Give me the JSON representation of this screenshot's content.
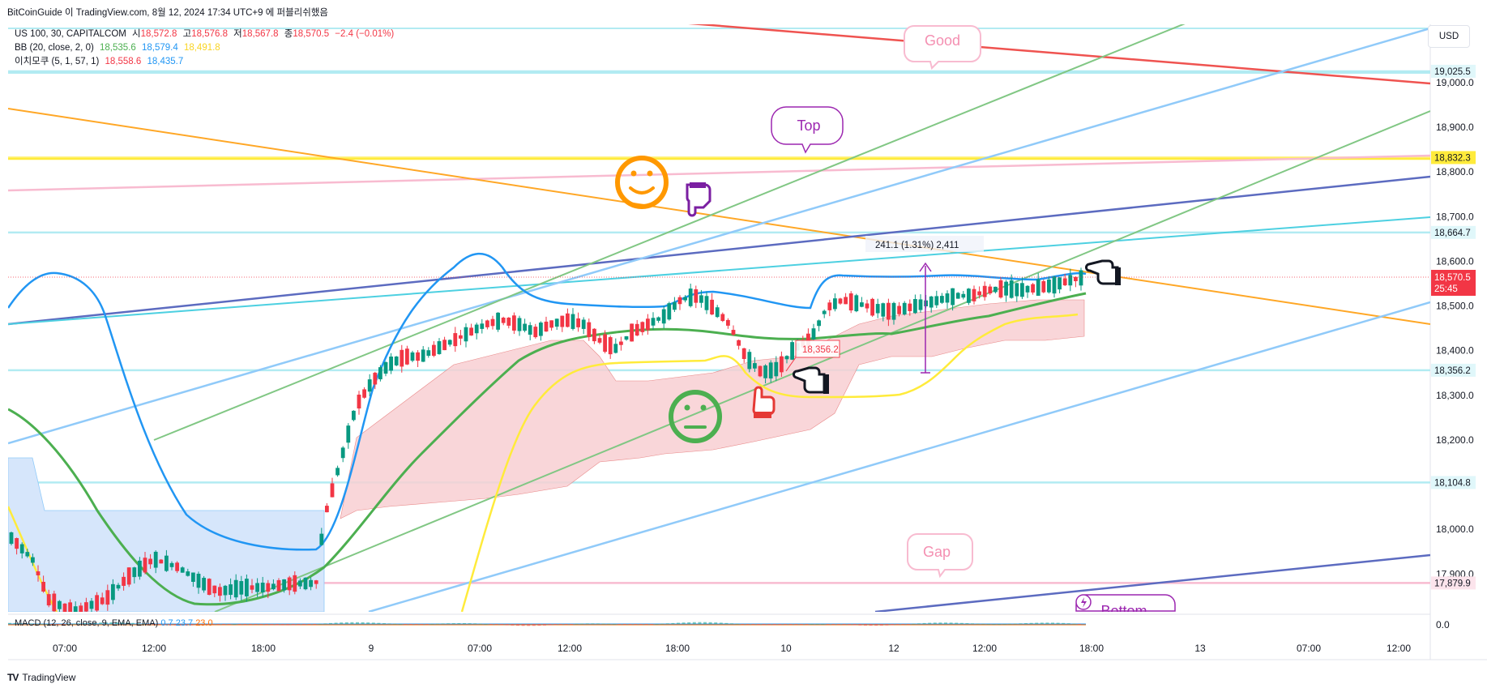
{
  "header": {
    "title": "BitCoinGuide 이 TradingView.com, 8월 12, 2024 17:34 UTC+9 에 퍼블리쉬했음"
  },
  "legend": {
    "symbol": "US 100, 30, CAPITALCOM",
    "o_label": "시",
    "o_value": "18,572.8",
    "h_label": "고",
    "h_value": "18,576.8",
    "l_label": "저",
    "l_value": "18,567.8",
    "c_label": "종",
    "c_value": "18,570.5",
    "change": "−2.4 (−0.01%)",
    "bb_label": "BB (20, close, 2, 0)",
    "bb_basis": "18,535.6",
    "bb_upper": "18,579.4",
    "bb_lower": "18,491.8",
    "ichimoku_label": "이치모쿠 (5, 1, 57, 1)",
    "ichi_v1": "18,558.6",
    "ichi_v2": "18,435.7"
  },
  "currency_button": "USD",
  "macd_label": "MACD (12, 26, close, 9, EMA, EMA)",
  "macd_values": [
    "0.7",
    "23.7",
    "23.0"
  ],
  "macd_axis": "0.0",
  "annotations": {
    "measure": "241.1 (1.31%) 2,411",
    "price_callout": "18,356.2",
    "bubble_good": "Good",
    "bubble_top": "Top",
    "bubble_gap": "Gap",
    "bubble_bottom": "Bottom"
  },
  "price_tags": {
    "current_price": "18,570.5",
    "countdown": "25:45",
    "levels": [
      "19,025.5",
      "18,832.3",
      "18,664.7",
      "18,356.2",
      "18,104.8",
      "17,879.9"
    ]
  },
  "colors": {
    "up": "#089981",
    "down": "#f23645",
    "bb_basis": "#4caf50",
    "bb_upper": "#2196f3",
    "bb_lower": "#ffeb3b",
    "cloud_red": "#f8d0d3",
    "cloud_blue": "#d6e6fb"
  },
  "footer": {
    "brand": "TradingView"
  },
  "chart_data": {
    "type": "candlestick",
    "symbol": "US 100, 30, CAPITALCOM",
    "interval": "30",
    "y_ticks": [
      19000,
      18900,
      18800,
      18700,
      18600,
      18500,
      18400,
      18300,
      18200,
      18100,
      18000,
      17900
    ],
    "x_ticks": [
      "07:00",
      "12:00",
      "18:00",
      "9",
      "07:00",
      "12:00",
      "18:00",
      "10",
      "12",
      "12:00",
      "18:00",
      "13",
      "07:00",
      "12:00"
    ],
    "horizontal_levels": [
      19025.5,
      18832.3,
      18664.7,
      18356.2,
      18104.8,
      17879.9
    ],
    "last_price": 18570.5,
    "ohlc_last": {
      "open": 18572.8,
      "high": 18576.8,
      "low": 18567.8,
      "close": 18570.5
    }
  }
}
